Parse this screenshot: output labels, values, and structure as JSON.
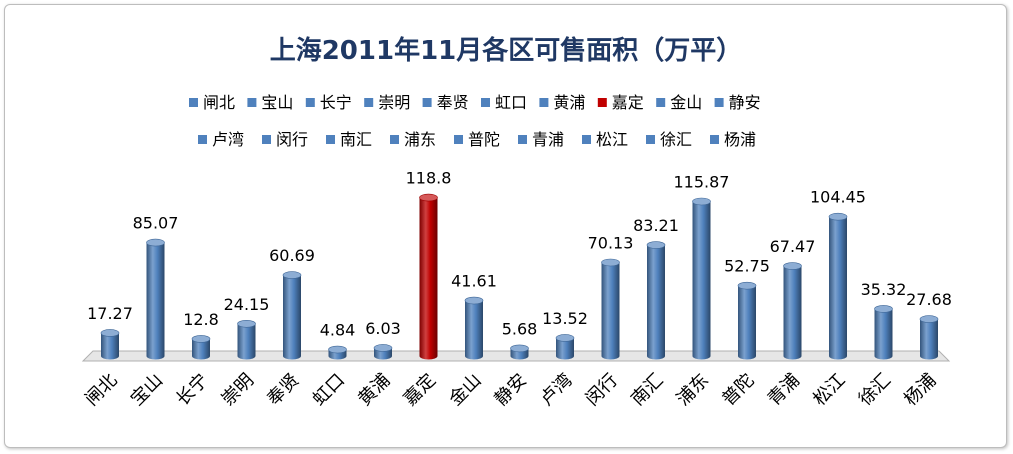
{
  "chart_data": {
    "type": "bar",
    "title": "上海2011年11月各区可售面积（万平）",
    "categories": [
      "闸北",
      "宝山",
      "长宁",
      "崇明",
      "奉贤",
      "虹口",
      "黄浦",
      "嘉定",
      "金山",
      "静安",
      "卢湾",
      "闵行",
      "南汇",
      "浦东",
      "普陀",
      "青浦",
      "松江",
      "徐汇",
      "杨浦"
    ],
    "values": [
      17.27,
      85.07,
      12.8,
      24.15,
      60.69,
      4.84,
      6.03,
      118.8,
      41.61,
      5.68,
      13.52,
      70.13,
      83.21,
      115.87,
      52.75,
      67.47,
      104.45,
      35.32,
      27.68
    ],
    "value_labels": [
      "17.27",
      "85.07",
      "12.8",
      "24.15",
      "60.69",
      "4.84",
      "6.03",
      "118.8",
      "41.61",
      "5.68",
      "13.52",
      "70.13",
      "83.21",
      "115.87",
      "52.75",
      "67.47",
      "104.45",
      "35.32",
      "27.68"
    ],
    "colors": {
      "default": "#4f81bd",
      "highlight": "#c00000",
      "title": "#1f3864"
    },
    "highlight_category": "嘉定",
    "legend_placement": "top",
    "grid": false,
    "bar_style": "3d-cylinder"
  }
}
